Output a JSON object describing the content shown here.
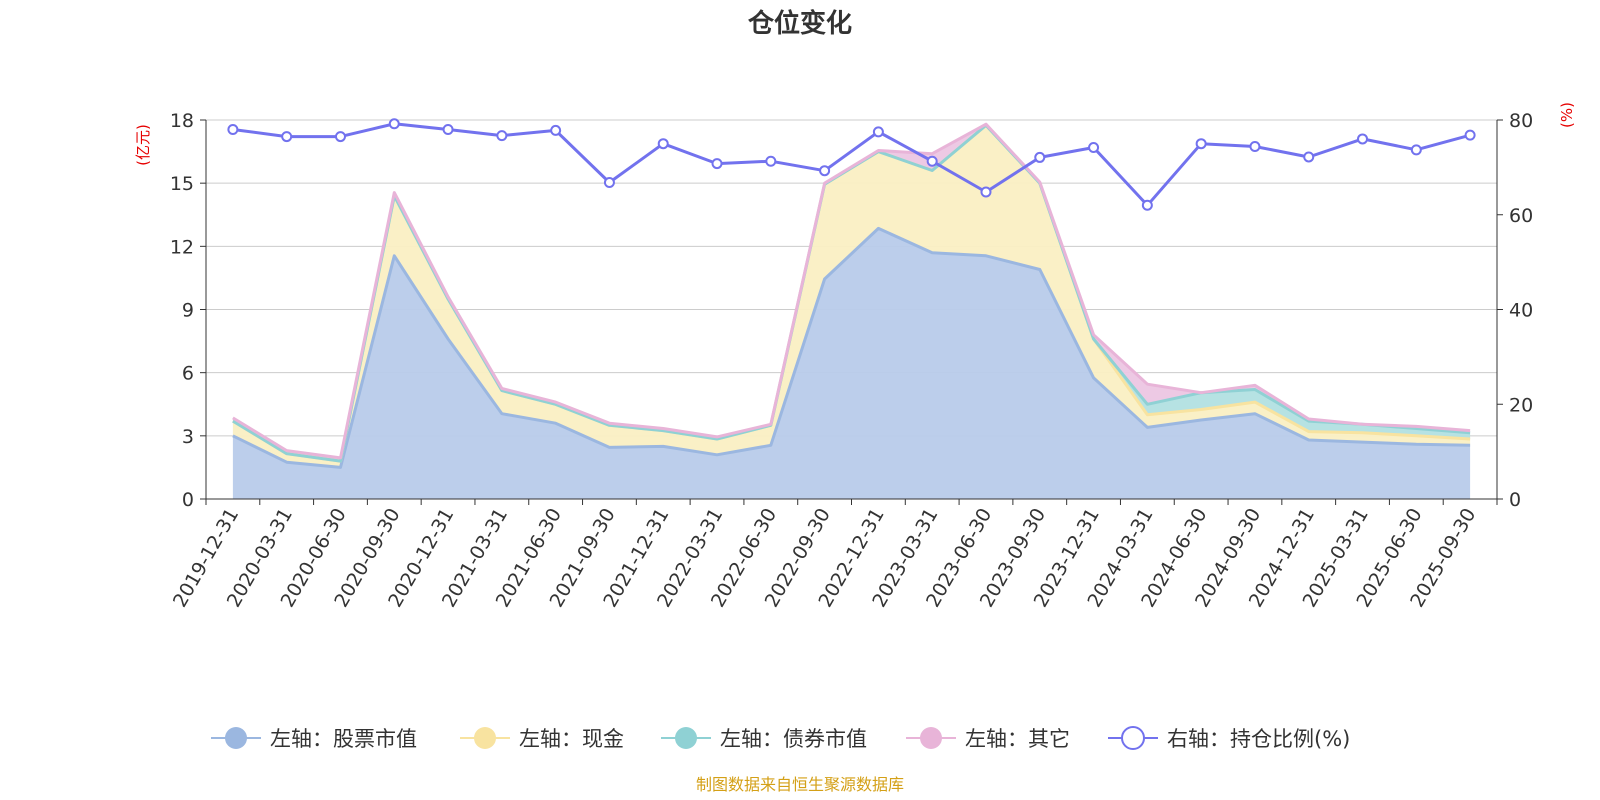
{
  "chart_data": {
    "type": "area",
    "title": "仓位变化",
    "source": "制图数据来自恒生聚源数据库",
    "categories": [
      "2019-12-31",
      "2020-03-31",
      "2020-06-30",
      "2020-09-30",
      "2020-12-31",
      "2021-03-31",
      "2021-06-30",
      "2021-09-30",
      "2021-12-31",
      "2022-03-31",
      "2022-06-30",
      "2022-09-30",
      "2022-12-31",
      "2023-03-31",
      "2023-06-30",
      "2023-09-30",
      "2023-12-31",
      "2024-03-31",
      "2024-06-30",
      "2024-09-30",
      "2024-12-31",
      "2025-03-31",
      "2025-06-30",
      "2025-09-30"
    ],
    "left_axis": {
      "unit": "(亿元)",
      "min": 0,
      "max": 18,
      "ticks": [
        "0",
        "3",
        "6",
        "9",
        "12",
        "15",
        "18"
      ]
    },
    "right_axis": {
      "unit": "(%)",
      "min": 0,
      "max": 80,
      "ticks": [
        "0",
        "20",
        "40",
        "60",
        "80"
      ]
    },
    "series": [
      {
        "name": "左轴：股票市值",
        "axis": "left",
        "color": "#9bb7e0",
        "fill": "#b8cbea",
        "values": [
          3.0,
          1.75,
          1.5,
          11.55,
          7.6,
          4.05,
          3.6,
          2.45,
          2.5,
          2.1,
          2.55,
          10.45,
          12.85,
          11.7,
          11.55,
          10.9,
          5.75,
          3.4,
          3.75,
          4.05,
          2.8,
          2.7,
          2.6,
          2.55
        ]
      },
      {
        "name": "左轴：现金",
        "axis": "left",
        "color": "#f8e3a0",
        "fill": "#faefc3",
        "values": [
          0.7,
          0.4,
          0.3,
          2.85,
          1.9,
          1.1,
          0.9,
          1.05,
          0.75,
          0.75,
          0.95,
          4.5,
          3.65,
          3.9,
          6.2,
          4.1,
          1.85,
          0.6,
          0.5,
          0.55,
          0.4,
          0.45,
          0.4,
          0.3
        ]
      },
      {
        "name": "左轴：债券市值",
        "axis": "left",
        "color": "#8fd1d4",
        "fill": "#b2e0e1",
        "values": [
          0,
          0,
          0,
          0,
          0,
          0,
          0,
          0,
          0,
          0,
          0,
          0,
          0,
          0,
          0,
          0,
          0,
          0.5,
          0.8,
          0.6,
          0.5,
          0.4,
          0.35,
          0.3
        ]
      },
      {
        "name": "左轴：其它",
        "axis": "left",
        "color": "#e8b4d8",
        "fill": "#ecc6e3",
        "values": [
          0.15,
          0.15,
          0.15,
          0.15,
          0.1,
          0.1,
          0.1,
          0.1,
          0.1,
          0.1,
          0.05,
          0.05,
          0.05,
          0.8,
          0.05,
          0.05,
          0.2,
          0.95,
          0,
          0.2,
          0.1,
          0,
          0.1,
          0.1
        ]
      },
      {
        "name": "右轴：持仓比例(%)",
        "axis": "right",
        "color": "#7272ee",
        "values": [
          78.0,
          76.5,
          76.5,
          79.2,
          78.0,
          76.7,
          77.8,
          66.8,
          75.0,
          70.8,
          71.3,
          69.3,
          77.5,
          71.3,
          64.8,
          72.1,
          74.2,
          62.0,
          75.0,
          74.4,
          72.2,
          76.0,
          73.7,
          76.8
        ]
      }
    ]
  }
}
